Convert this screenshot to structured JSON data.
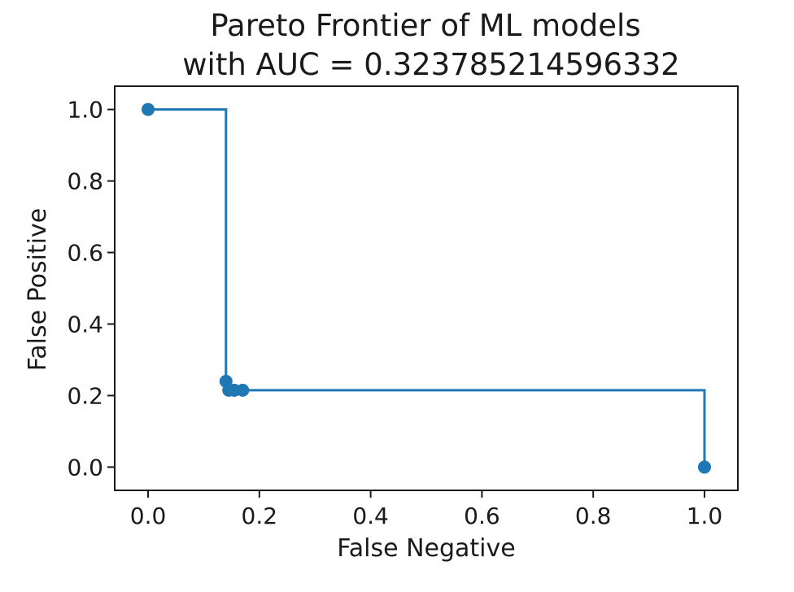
{
  "chart_data": {
    "type": "line",
    "title": "Pareto Frontier of ML models",
    "subtitle": "with AUC = 0.323785214596332",
    "xlabel": "False Negative",
    "ylabel": "False Positive",
    "xlim": [
      -0.06,
      1.06
    ],
    "ylim": [
      -0.065,
      1.065
    ],
    "grid": false,
    "legend": "none",
    "xticks": [
      0.0,
      0.2,
      0.4,
      0.6,
      0.8,
      1.0
    ],
    "yticks": [
      0.0,
      0.2,
      0.4,
      0.6,
      0.8,
      1.0
    ],
    "xtick_labels": [
      "0.0",
      "0.2",
      "0.4",
      "0.6",
      "0.8",
      "1.0"
    ],
    "ytick_labels": [
      "0.0",
      "0.2",
      "0.4",
      "0.6",
      "0.8",
      "1.0"
    ],
    "line_style": "steps-post",
    "color": "#1f77b4",
    "series": [
      {
        "x": [
          0.0,
          0.14,
          0.145,
          0.155,
          0.17,
          1.0
        ],
        "y": [
          1.0,
          0.24,
          0.215,
          0.215,
          0.215,
          0.0
        ]
      }
    ]
  }
}
